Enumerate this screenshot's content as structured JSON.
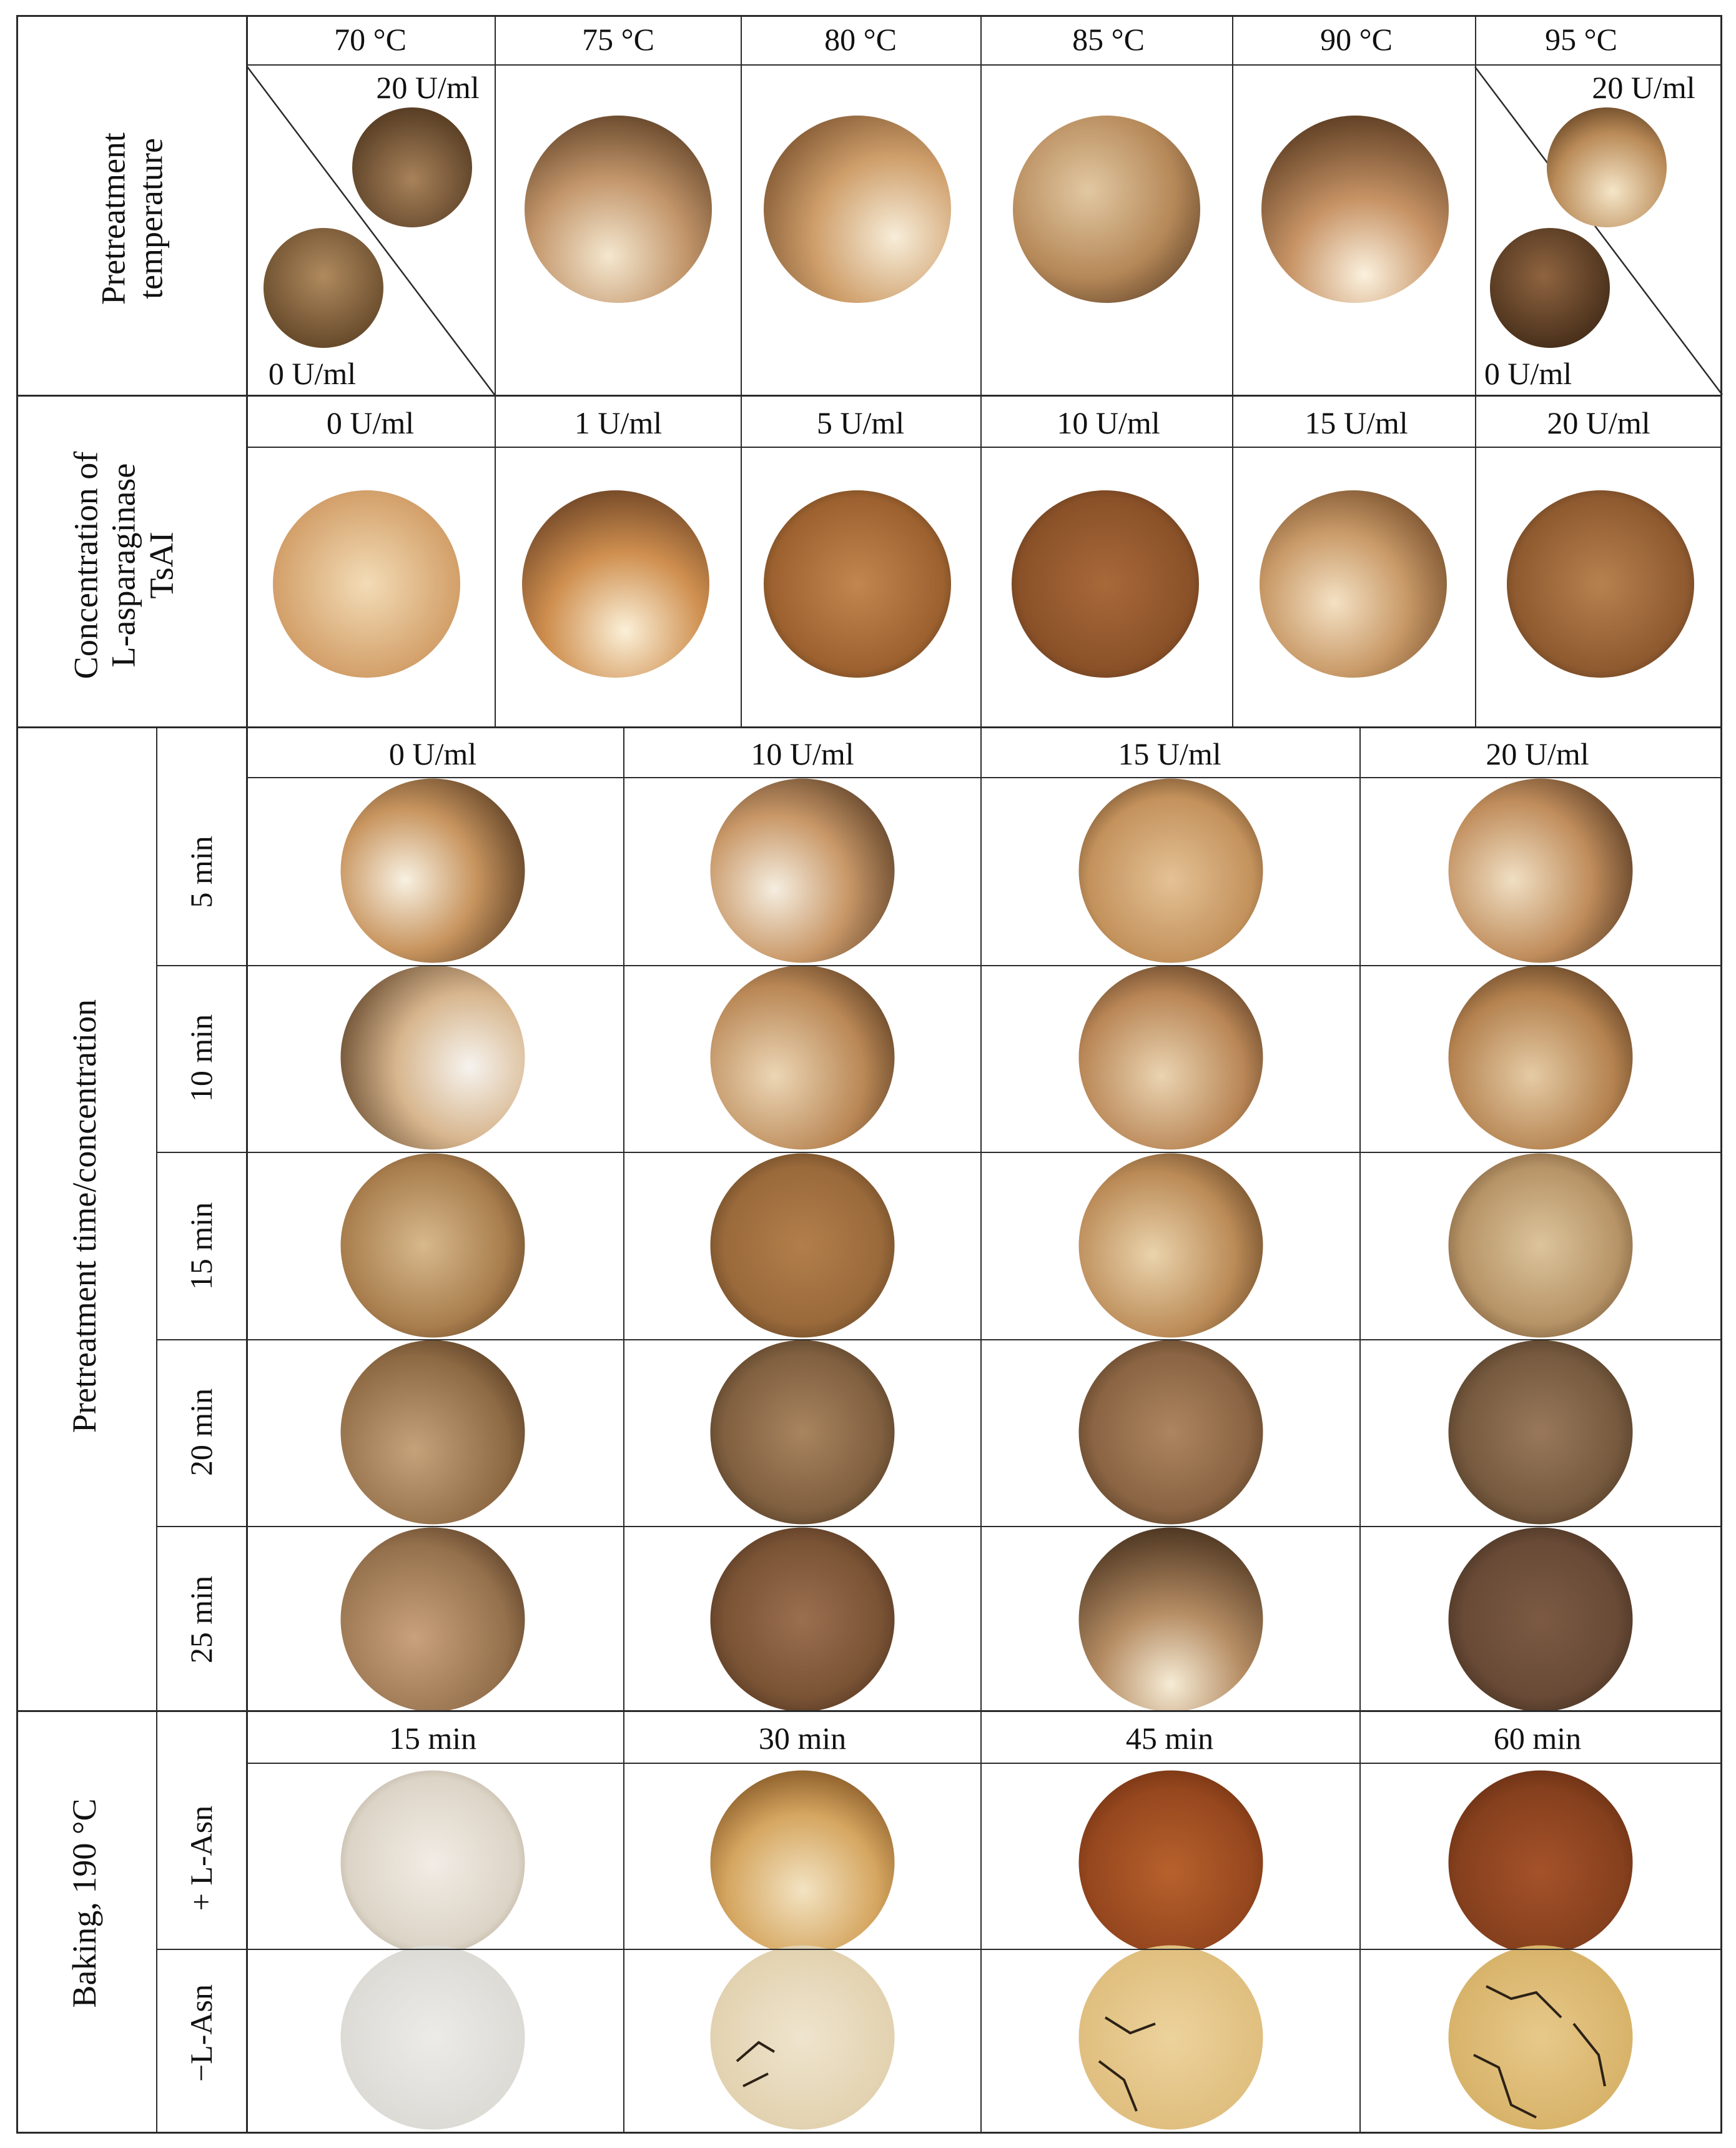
{
  "section1": {
    "title_line1": "Pretreatment",
    "title_line2": "temperature",
    "headers": [
      "70 °C",
      "75 °C",
      "80 °C",
      "85 °C",
      "90 °C",
      "95 °C"
    ],
    "split_top_label": "20 U/ml",
    "split_bottom_label": "0 U/ml"
  },
  "section2": {
    "title_line1": "Concentration of",
    "title_line2": "L-asparaginase",
    "title_line3": "TsAI",
    "headers": [
      "0 U/ml",
      "1 U/ml",
      "5 U/ml",
      "10 U/ml",
      "15 U/ml",
      "20 U/ml"
    ]
  },
  "section3": {
    "title": "Pretreatment time/concentration",
    "headers": [
      "0 U/ml",
      "10 U/ml",
      "15 U/ml",
      "20 U/ml"
    ],
    "rows": [
      "5 min",
      "10 min",
      "15 min",
      "20 min",
      "25 min"
    ]
  },
  "section4": {
    "title": "Baking, 190 °C",
    "headers": [
      "15 min",
      "30 min",
      "45 min",
      "60 min"
    ],
    "rows": [
      "+ L-Asn",
      "−L-Asn"
    ]
  },
  "colors": {
    "rule": "#2a2a2a",
    "sample_light": "#f3e6cf",
    "sample_mid": "#b4793f",
    "sample_dark": "#3d240f",
    "dough_pale": "#ece7de",
    "dough_tan": "#e3c27e",
    "dough_red": "#8a3d17"
  }
}
